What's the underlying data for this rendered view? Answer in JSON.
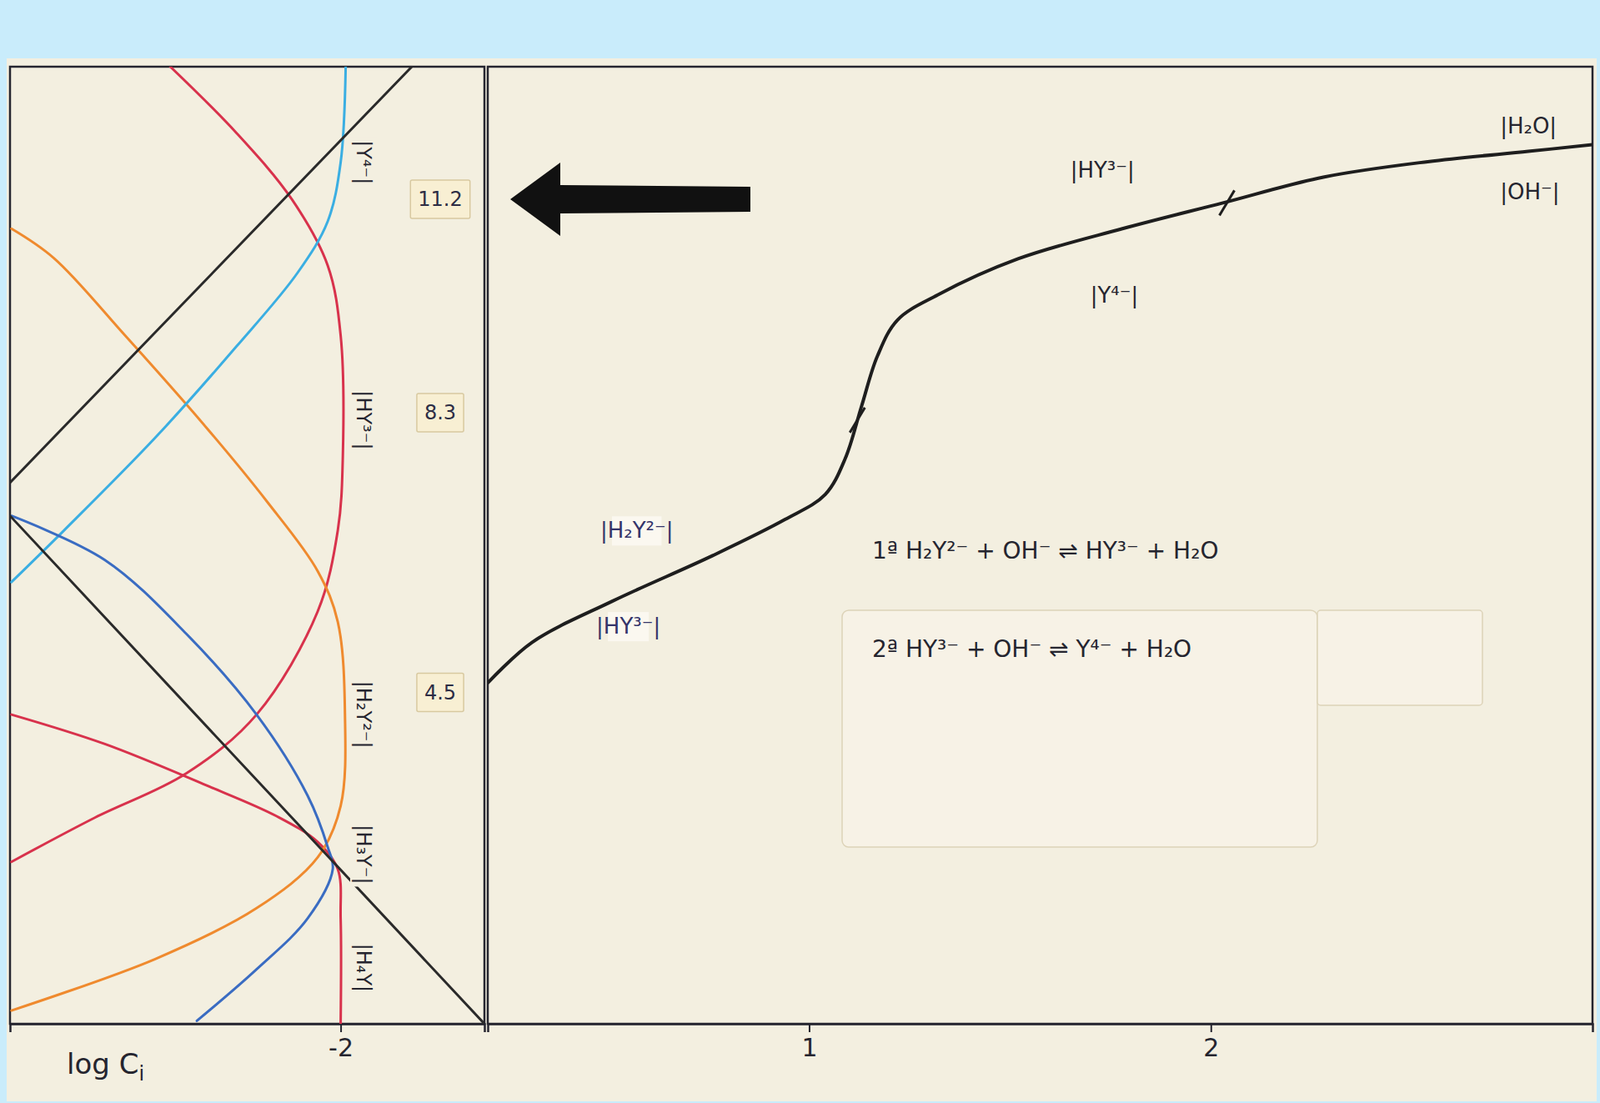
{
  "chart_data": [
    {
      "type": "line",
      "x_label": "log Ci",
      "xlim": [
        -6.6,
        0
      ],
      "xticks": [
        -2
      ],
      "ylim": [
        0,
        13
      ],
      "tick_labels": "x",
      "series": [
        {
          "color": "#d8324c",
          "x": [
            -4.37,
            -3.45,
            -2.68,
            -2.18,
            -2.0,
            -1.97,
            -2.04,
            -2.32,
            -3.17,
            -4.15,
            -5.42,
            -6.58
          ],
          "values": [
            13.0,
            12.1,
            11.2,
            10.3,
            9.35,
            7.7,
            6.7,
            5.6,
            4.2,
            3.4,
            2.8,
            2.2
          ]
        },
        {
          "color": "#d8324c",
          "x": [
            -6.58,
            -5.28,
            -3.87,
            -2.89,
            -2.32,
            -2.04,
            -2.0,
            -2.0
          ],
          "values": [
            4.2,
            3.8,
            3.24,
            2.82,
            2.47,
            2.1,
            1.43,
            0.0
          ]
        },
        {
          "color": "#ef8a2e",
          "x": [
            -6.58,
            -5.99,
            -5.0,
            -3.87,
            -3.03,
            -2.32,
            -2.04,
            -1.94,
            -2.0,
            -2.32,
            -3.17,
            -4.58,
            -6.58
          ],
          "values": [
            10.8,
            10.4,
            9.35,
            8.1,
            7.1,
            6.15,
            5.46,
            4.2,
            2.96,
            2.26,
            1.57,
            0.88,
            0.18
          ]
        },
        {
          "color": "#3aaee2",
          "x": [
            -6.58,
            -5.85,
            -4.58,
            -3.45,
            -2.6,
            -2.18,
            -2.0,
            -1.93
          ],
          "values": [
            6.0,
            6.7,
            7.96,
            9.2,
            10.2,
            10.9,
            11.7,
            13.0
          ]
        },
        {
          "color": "#3a6cc2",
          "x": [
            -6.58,
            -5.28,
            -4.15,
            -3.17,
            -2.46,
            -2.18,
            -2.11,
            -2.46,
            -3.17,
            -4.0
          ],
          "values": [
            6.9,
            6.3,
            5.3,
            4.2,
            3.1,
            2.4,
            2.1,
            1.43,
            0.74,
            0.04
          ]
        },
        {
          "color": "#2a2a2a",
          "x": [
            -6.6,
            0
          ],
          "values": [
            6.9,
            0
          ]
        },
        {
          "color": "#2a2a2a",
          "x": [
            -6.6,
            -1.01
          ],
          "values": [
            7.35,
            13.0
          ]
        }
      ],
      "annotations": [
        {
          "text": "|Y⁴⁻|",
          "y": 11.7
        },
        {
          "text": "|HY³⁻|",
          "y": 8.2
        },
        {
          "text": "|H₂Y²⁻|",
          "y": 4.2
        },
        {
          "text": "|H₃Y⁻|",
          "y": 2.3
        },
        {
          "text": "|H₄Y|",
          "y": 0.76
        }
      ],
      "ph_labels": [
        11.2,
        8.3,
        4.5
      ]
    },
    {
      "type": "line",
      "xlim": [
        0.2,
        2.95
      ],
      "xticks": [
        1,
        2
      ],
      "ylim": [
        0,
        13
      ],
      "tick_labels": "x",
      "series": [
        {
          "color": "#1e1e1e",
          "x": [
            0.2,
            0.31,
            0.51,
            0.76,
            0.94,
            1.04,
            1.09,
            1.13,
            1.17,
            1.22,
            1.32,
            1.52,
            1.78,
            2.03,
            2.28,
            2.54,
            2.79,
            2.95
          ],
          "values": [
            4.63,
            5.18,
            5.74,
            6.36,
            6.85,
            7.19,
            7.68,
            8.38,
            9.07,
            9.56,
            9.9,
            10.39,
            10.8,
            11.15,
            11.5,
            11.71,
            11.85,
            11.94
          ]
        }
      ],
      "equivalence_points": {
        "x": [
          1.12,
          2.04
        ],
        "values": [
          8.2,
          11.15
        ]
      },
      "annotations": [
        {
          "text": "|H₂Y²⁻|",
          "x": 0.48,
          "y": 6.7
        },
        {
          "text": "|HY³⁻|",
          "x": 0.47,
          "y": 5.4
        },
        {
          "text": "|HY³⁻|",
          "x": 1.65,
          "y": 11.6
        },
        {
          "text": "|Y⁴⁻|",
          "x": 1.7,
          "y": 9.9
        },
        {
          "text": "|H₂O|",
          "x": 2.72,
          "y": 12.2
        },
        {
          "text": "|OH⁻|",
          "x": 2.72,
          "y": 11.3
        }
      ],
      "reactions": [
        "1ª H₂Y²⁻ + OH⁻ ⇌ HY³⁻ + H₂O",
        "2ª HY³⁻ + OH⁻ ⇌ Y⁴⁻ + H₂O"
      ]
    }
  ]
}
